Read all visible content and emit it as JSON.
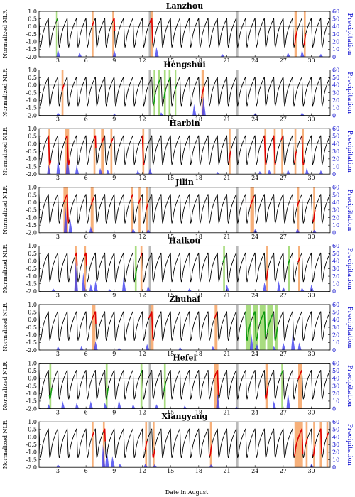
{
  "figure": {
    "xlabel": "Date in August"
  },
  "chart_data": {
    "type": "line",
    "xlabel": "Date in August",
    "x_ticks": [
      3,
      6,
      9,
      12,
      15,
      18,
      21,
      24,
      27,
      30
    ],
    "xlim": [
      1,
      32
    ],
    "left_axis": {
      "label": "Normalized NLR",
      "ylim": [
        -2.0,
        1.0
      ],
      "ticks": [
        "1.0",
        "0.5",
        "0.0",
        "-0.5",
        "-1.0",
        "-1.5",
        "-2.0"
      ]
    },
    "right_axis": {
      "label": "Precipitation",
      "ylim": [
        0,
        60
      ],
      "ticks": [
        "60",
        "50",
        "40",
        "30",
        "20",
        "10",
        "0"
      ]
    },
    "colors": {
      "nlr": "#000000",
      "high_period": "#dd0000",
      "low_period": "#119911",
      "precipitation": "#3333ee",
      "high_band": "#f7b07a",
      "low_band": "#a8dc80",
      "holiday_band": "#a9a9a9"
    },
    "holiday_days": [
      12.8,
      22.1
    ],
    "panels": [
      {
        "title": "Lanzhou",
        "orange": [
          [
            6.6,
            6.8
          ],
          [
            8.8,
            9.0
          ],
          [
            12.8,
            13.1
          ],
          [
            28.2,
            28.5
          ],
          [
            29.2,
            29.4
          ]
        ],
        "green": [
          [
            2.8,
            2.9
          ]
        ],
        "rain": [
          [
            3,
            10
          ],
          [
            5.3,
            6
          ],
          [
            9,
            9
          ],
          [
            13.5,
            13
          ],
          [
            20.5,
            4
          ],
          [
            27.5,
            6
          ],
          [
            29,
            9
          ],
          [
            31,
            4
          ]
        ]
      },
      {
        "title": "Hengshui",
        "orange": [
          [
            3.4,
            3.6
          ],
          [
            18.3,
            18.6
          ]
        ],
        "green": [
          [
            13.2,
            13.4
          ],
          [
            13.7,
            13.9
          ],
          [
            14.3,
            14.5
          ],
          [
            14.8,
            15.0
          ],
          [
            15.5,
            15.6
          ]
        ],
        "rain": [
          [
            3,
            4
          ],
          [
            9,
            2
          ],
          [
            14,
            4
          ],
          [
            17.5,
            15
          ],
          [
            18.5,
            25
          ],
          [
            24,
            3
          ],
          [
            29,
            4
          ]
        ]
      },
      {
        "title": "Harbin",
        "orange": [
          [
            2.0,
            2.2
          ],
          [
            3.8,
            4.2
          ],
          [
            6.8,
            7.0
          ],
          [
            7.6,
            7.9
          ],
          [
            8.6,
            8.8
          ],
          [
            12.0,
            12.2
          ],
          [
            21.2,
            21.4
          ],
          [
            25.0,
            25.2
          ],
          [
            26.0,
            26.2
          ],
          [
            26.8,
            27.0
          ],
          [
            28.2,
            28.4
          ],
          [
            29.0,
            29.2
          ]
        ],
        "green": [],
        "rain": [
          [
            2,
            12
          ],
          [
            3,
            20
          ],
          [
            4,
            25
          ],
          [
            5,
            12
          ],
          [
            7.5,
            8
          ],
          [
            8.3,
            6
          ],
          [
            11.5,
            5
          ],
          [
            12.8,
            8
          ],
          [
            20,
            3
          ],
          [
            24.5,
            4
          ],
          [
            25.5,
            6
          ],
          [
            27.5,
            6
          ],
          [
            29.5,
            8
          ],
          [
            31,
            5
          ]
        ]
      },
      {
        "title": "Jilin",
        "orange": [
          [
            3.6,
            4.1
          ],
          [
            6.5,
            6.8
          ],
          [
            10.8,
            11.0
          ],
          [
            11.6,
            11.8
          ],
          [
            12.4,
            12.6
          ],
          [
            23.5,
            23.9
          ],
          [
            28.5,
            28.7
          ],
          [
            30.2,
            30.4
          ]
        ],
        "green": [],
        "rain": [
          [
            3.8,
            35
          ],
          [
            4.3,
            20
          ],
          [
            6.5,
            8
          ],
          [
            11,
            6
          ],
          [
            12.6,
            5
          ],
          [
            24,
            5
          ],
          [
            28.5,
            6
          ],
          [
            30.3,
            4
          ]
        ]
      },
      {
        "title": "Haikou",
        "orange": [
          [
            4.8,
            5.0
          ],
          [
            5.8,
            6.0
          ],
          [
            11.8,
            12.0
          ],
          [
            25.2,
            25.4
          ],
          [
            28.6,
            28.8
          ]
        ],
        "green": [
          [
            11.2,
            11.4
          ],
          [
            20.6,
            20.8
          ],
          [
            27.5,
            27.7
          ]
        ],
        "rain": [
          [
            2.5,
            4
          ],
          [
            4.9,
            40
          ],
          [
            5.7,
            25
          ],
          [
            6.5,
            10
          ],
          [
            7,
            14
          ],
          [
            8.5,
            3
          ],
          [
            10,
            20
          ],
          [
            12.6,
            8
          ],
          [
            17,
            4
          ],
          [
            21,
            9
          ],
          [
            25,
            12
          ],
          [
            26.5,
            14
          ],
          [
            27,
            6
          ],
          [
            29,
            5
          ],
          [
            30,
            9
          ]
        ]
      },
      {
        "title": "Zhuhai",
        "orange": [
          [
            6.6,
            7.0
          ],
          [
            12.7,
            13.2
          ],
          [
            19.7,
            20.0
          ]
        ],
        "green": [
          [
            23.0,
            23.6
          ],
          [
            23.8,
            24.3
          ],
          [
            24.5,
            25.1
          ],
          [
            25.3,
            25.9
          ],
          [
            26.1,
            26.4
          ]
        ],
        "rain": [
          [
            3,
            5
          ],
          [
            5.5,
            5
          ],
          [
            7,
            12
          ],
          [
            9.5,
            3
          ],
          [
            12.5,
            8
          ],
          [
            16,
            4
          ],
          [
            19.5,
            5
          ],
          [
            23.6,
            22
          ],
          [
            24.2,
            8
          ],
          [
            26,
            5
          ],
          [
            27,
            10
          ],
          [
            28,
            22
          ],
          [
            28.7,
            10
          ]
        ]
      },
      {
        "title": "Hefei",
        "orange": [
          [
            19.6,
            20.1
          ],
          [
            25.1,
            25.4
          ],
          [
            28.6,
            29.0
          ]
        ],
        "green": [
          [
            2.1,
            2.3
          ],
          [
            8.1,
            8.3
          ],
          [
            11.8,
            12.0
          ],
          [
            14.3,
            14.5
          ],
          [
            26.8,
            27.0
          ]
        ],
        "rain": [
          [
            2,
            6
          ],
          [
            3.5,
            10
          ],
          [
            5,
            8
          ],
          [
            6.5,
            10
          ],
          [
            8,
            8
          ],
          [
            9.5,
            12
          ],
          [
            11,
            6
          ],
          [
            13.5,
            6
          ],
          [
            16.5,
            4
          ],
          [
            20,
            20
          ],
          [
            22,
            3
          ],
          [
            26,
            10
          ],
          [
            27.5,
            22
          ]
        ]
      },
      {
        "title": "Xiangyang",
        "orange": [
          [
            6.6,
            6.8
          ],
          [
            7.8,
            8.0
          ],
          [
            12.3,
            12.5
          ],
          [
            13.1,
            13.3
          ],
          [
            19.2,
            19.4
          ],
          [
            28.2,
            29.1
          ],
          [
            29.4,
            29.6
          ],
          [
            30.2,
            30.4
          ],
          [
            30.9,
            31.1
          ],
          [
            31.6,
            31.8
          ]
        ],
        "green": [],
        "rain": [
          [
            3,
            4
          ],
          [
            7.8,
            30
          ],
          [
            8.2,
            25
          ],
          [
            8.8,
            15
          ],
          [
            9.6,
            5
          ],
          [
            12.3,
            5
          ],
          [
            13.3,
            4
          ],
          [
            19.3,
            4
          ],
          [
            30,
            5
          ]
        ]
      }
    ]
  }
}
